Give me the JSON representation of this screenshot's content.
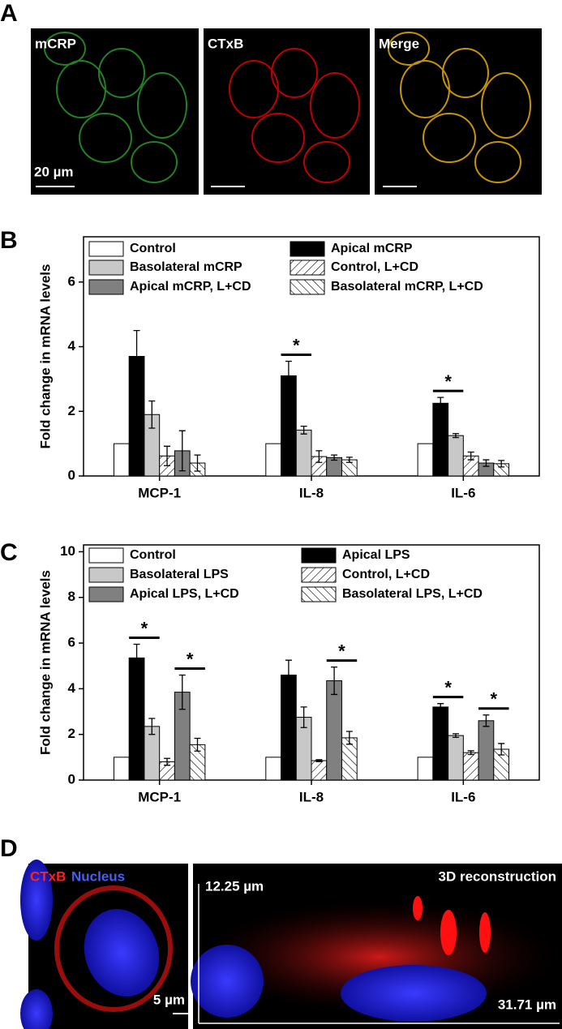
{
  "panel_labels": [
    "A",
    "B",
    "C",
    "D"
  ],
  "panel_a": {
    "labels": [
      "mCRP",
      "CTxB",
      "Merge"
    ],
    "scale_bar": "20 µm"
  },
  "chart_data": [
    {
      "type": "bar",
      "ylabel": "Fold change in mRNA levels",
      "categories": [
        "MCP-1",
        "IL-8",
        "IL-6"
      ],
      "ylim": [
        0,
        7.4
      ],
      "yticks": [
        0,
        2,
        4,
        6
      ],
      "legend_columns": 2,
      "series": [
        {
          "name": "Control",
          "color": "#ffffff",
          "values": [
            1,
            1,
            1
          ]
        },
        {
          "name": "Apical mCRP",
          "color": "#000000",
          "values": [
            3.7,
            3.1,
            2.25
          ],
          "errors": [
            0.8,
            0.45,
            0.18
          ]
        },
        {
          "name": "Basolateral mCRP",
          "color": "#c8c8c8",
          "values": [
            1.9,
            1.42,
            1.25
          ],
          "errors": [
            0.42,
            0.12,
            0.06
          ]
        },
        {
          "name": "Control, L+CD",
          "color": "#ffffff",
          "pattern": "forward",
          "values": [
            0.62,
            0.6,
            0.62
          ],
          "errors": [
            0.3,
            0.18,
            0.12
          ]
        },
        {
          "name": "Apical mCRP, L+CD",
          "color": "#808080",
          "values": [
            0.78,
            0.57,
            0.4
          ],
          "errors": [
            0.62,
            0.08,
            0.1
          ]
        },
        {
          "name": "Basolateral mCRP, L+CD",
          "color": "#ffffff",
          "pattern": "backward",
          "values": [
            0.4,
            0.5,
            0.38
          ],
          "errors": [
            0.25,
            0.08,
            0.1
          ]
        }
      ],
      "significance": [
        {
          "label": "*",
          "category": 1,
          "series": [
            1,
            2
          ]
        },
        {
          "label": "*",
          "category": 2,
          "series": [
            1,
            2
          ]
        }
      ]
    },
    {
      "type": "bar",
      "ylabel": "Fold change in mRNA levels",
      "categories": [
        "MCP-1",
        "IL-8",
        "IL-6"
      ],
      "ylim": [
        0,
        10.3
      ],
      "yticks": [
        0,
        2,
        4,
        6,
        8,
        10
      ],
      "legend_columns": 2,
      "series": [
        {
          "name": "Control",
          "color": "#ffffff",
          "values": [
            1,
            1,
            1
          ]
        },
        {
          "name": "Apical LPS",
          "color": "#000000",
          "values": [
            5.35,
            4.6,
            3.2
          ],
          "errors": [
            0.6,
            0.65,
            0.15
          ]
        },
        {
          "name": "Basolateral LPS",
          "color": "#c8c8c8",
          "values": [
            2.35,
            2.75,
            1.95
          ],
          "errors": [
            0.35,
            0.45,
            0.08
          ]
        },
        {
          "name": "Control, L+CD",
          "color": "#ffffff",
          "pattern": "forward",
          "values": [
            0.8,
            0.85,
            1.2
          ],
          "errors": [
            0.15,
            0.04,
            0.08
          ]
        },
        {
          "name": "Apical LPS, L+CD",
          "color": "#808080",
          "values": [
            3.85,
            4.35,
            2.6
          ],
          "errors": [
            0.75,
            0.6,
            0.25
          ]
        },
        {
          "name": "Basolateral LPS, L+CD",
          "color": "#ffffff",
          "pattern": "backward",
          "values": [
            1.55,
            1.85,
            1.35
          ],
          "errors": [
            0.28,
            0.28,
            0.25
          ]
        }
      ],
      "significance": [
        {
          "label": "*",
          "category": 0,
          "series": [
            1,
            2
          ]
        },
        {
          "label": "*",
          "category": 0,
          "series": [
            4,
            5
          ]
        },
        {
          "label": "*",
          "category": 1,
          "series": [
            4,
            5
          ]
        },
        {
          "label": "*",
          "category": 2,
          "series": [
            1,
            2
          ]
        },
        {
          "label": "*",
          "category": 2,
          "series": [
            4,
            5
          ]
        }
      ]
    }
  ],
  "panel_d": {
    "labels": [
      "CTxB",
      "Nucleus"
    ],
    "scale_bar": "5 µm",
    "title": "3D reconstruction",
    "height": "12.25 µm",
    "width": "31.71 µm"
  }
}
